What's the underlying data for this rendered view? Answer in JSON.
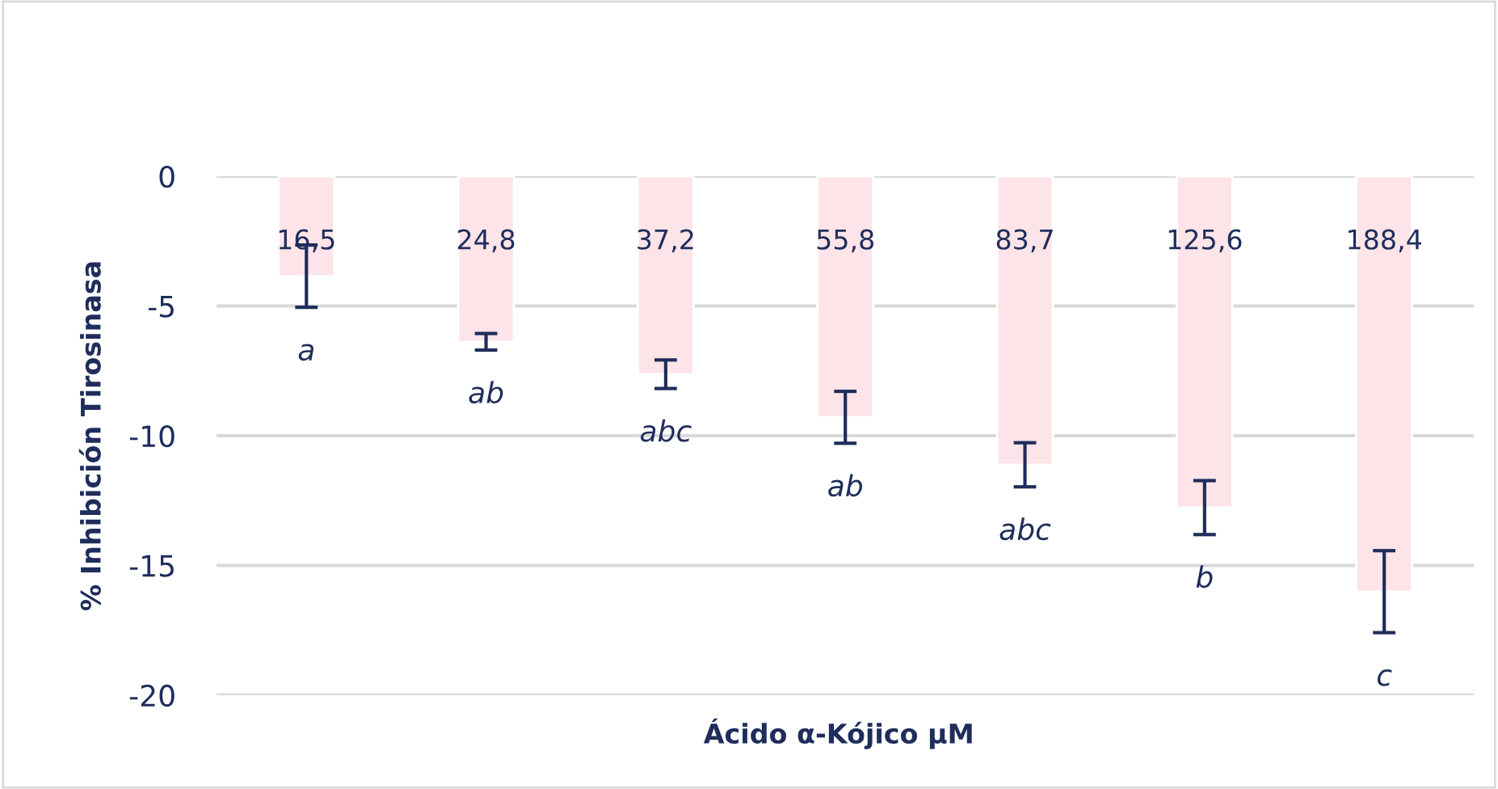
{
  "chart_data": {
    "type": "bar",
    "xlabel": "Ácido α-Kójico µM",
    "ylabel": "% Inhibición Tirosinasa",
    "categories": [
      "16,5",
      "24,8",
      "37,2",
      "55,8",
      "83,7",
      "125,6",
      "188,4"
    ],
    "series": [
      {
        "color": "#fde4e8",
        "values": [
          -3.85,
          -6.38,
          -7.63,
          -9.29,
          -11.12,
          -12.77,
          -16.01
        ],
        "errors": [
          1.2,
          0.32,
          0.55,
          1.0,
          0.85,
          1.04,
          1.58
        ]
      }
    ],
    "ylim": [
      -20,
      0
    ],
    "yticks": [
      -20,
      -15,
      -10,
      -5,
      0
    ],
    "grid": "y",
    "annotations": [
      "a",
      "ab",
      "abc",
      "ab",
      "abc",
      "b",
      "c"
    ]
  }
}
